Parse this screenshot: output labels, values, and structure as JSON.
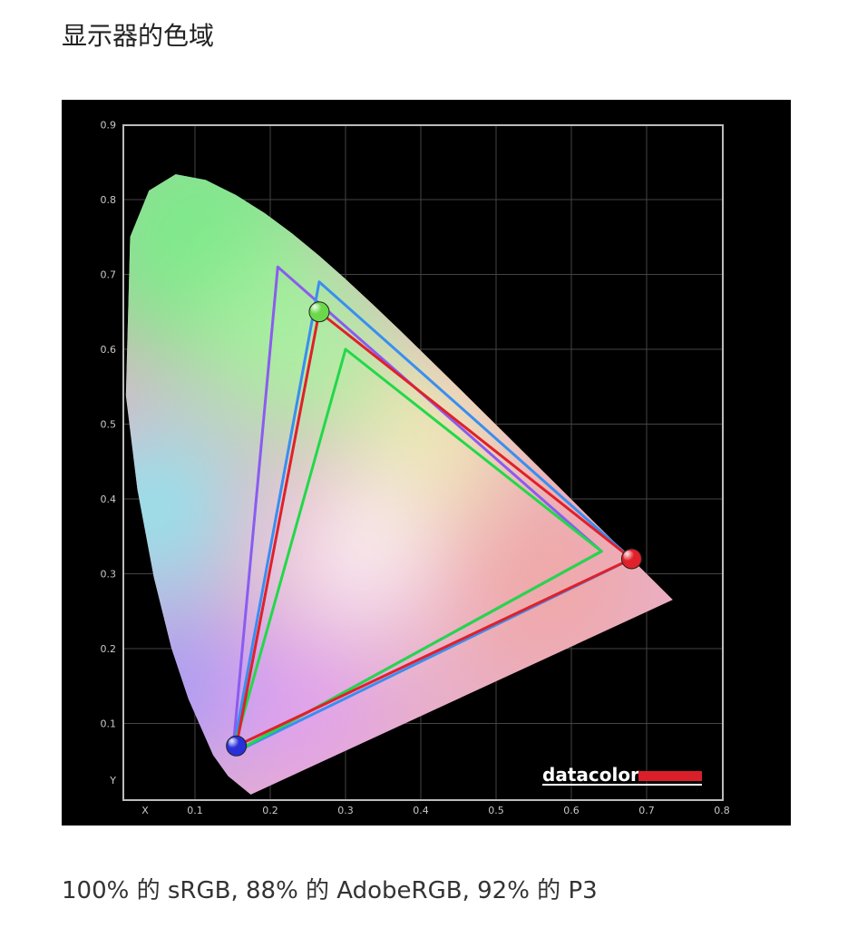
{
  "article": {
    "heading": "显示器的色域",
    "caption": "100% 的 sRGB, 88% 的 AdobeRGB, 92% 的 P3"
  },
  "logo": {
    "text": "datacolor",
    "bar_color": "#d9202a"
  },
  "chart_data": {
    "type": "line",
    "title": "",
    "xlabel": "X",
    "ylabel": "Y",
    "xlim": [
      0,
      0.8
    ],
    "ylim": [
      0,
      0.9
    ],
    "grid": true,
    "x_ticks": [
      "0.1",
      "0.2",
      "0.3",
      "0.4",
      "0.5",
      "0.6",
      "0.7",
      "0.8"
    ],
    "y_ticks": [
      "0.1",
      "0.2",
      "0.3",
      "0.4",
      "0.5",
      "0.6",
      "0.7",
      "0.8",
      "0.9"
    ],
    "spectral_locus": [
      [
        0.1741,
        0.005
      ],
      [
        0.144,
        0.0297
      ],
      [
        0.1241,
        0.0578
      ],
      [
        0.0913,
        0.1327
      ],
      [
        0.0687,
        0.2007
      ],
      [
        0.0454,
        0.295
      ],
      [
        0.0235,
        0.4127
      ],
      [
        0.0082,
        0.5384
      ],
      [
        0.0139,
        0.7502
      ],
      [
        0.0389,
        0.812
      ],
      [
        0.0743,
        0.8338
      ],
      [
        0.1142,
        0.8262
      ],
      [
        0.1547,
        0.8059
      ],
      [
        0.1929,
        0.7816
      ],
      [
        0.2296,
        0.7543
      ],
      [
        0.2658,
        0.7243
      ],
      [
        0.3016,
        0.6923
      ],
      [
        0.3373,
        0.6589
      ],
      [
        0.3731,
        0.6245
      ],
      [
        0.4087,
        0.5896
      ],
      [
        0.4441,
        0.5547
      ],
      [
        0.4788,
        0.5202
      ],
      [
        0.5125,
        0.4866
      ],
      [
        0.5448,
        0.4544
      ],
      [
        0.5752,
        0.4242
      ],
      [
        0.6029,
        0.3965
      ],
      [
        0.627,
        0.3725
      ],
      [
        0.6482,
        0.3514
      ],
      [
        0.6658,
        0.334
      ],
      [
        0.6801,
        0.3197
      ],
      [
        0.6915,
        0.3083
      ],
      [
        0.7006,
        0.2993
      ],
      [
        0.7347,
        0.2653
      ]
    ],
    "series": [
      {
        "color": "#8a5cf0",
        "points": [
          [
            0.64,
            0.33
          ],
          [
            0.21,
            0.71
          ],
          [
            0.15,
            0.06
          ]
        ]
      },
      {
        "color": "#3a8ef0",
        "points": [
          [
            0.68,
            0.32
          ],
          [
            0.265,
            0.69
          ],
          [
            0.15,
            0.06
          ]
        ]
      },
      {
        "color": "#22d84a",
        "points": [
          [
            0.64,
            0.33
          ],
          [
            0.3,
            0.6
          ],
          [
            0.15,
            0.06
          ]
        ]
      },
      {
        "color": "#e0202a",
        "points": [
          [
            0.68,
            0.32
          ],
          [
            0.265,
            0.65
          ],
          [
            0.155,
            0.07
          ]
        ]
      }
    ],
    "markers": [
      {
        "color": "#e0202a",
        "point": [
          0.68,
          0.32
        ]
      },
      {
        "color": "#6ad84a",
        "point": [
          0.265,
          0.65
        ]
      },
      {
        "color": "#2a30d8",
        "point": [
          0.155,
          0.07
        ]
      }
    ]
  }
}
